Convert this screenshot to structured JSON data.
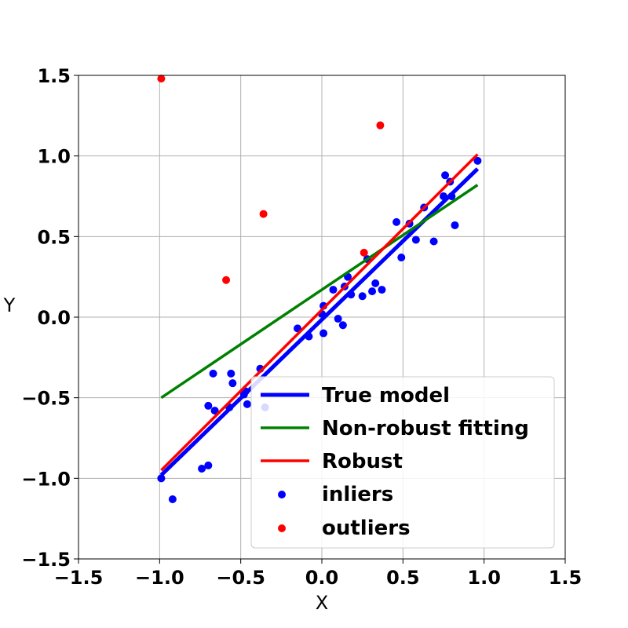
{
  "chart_data": {
    "type": "scatter",
    "title": "",
    "xlabel": "X",
    "ylabel": "Y",
    "xlim": [
      -1.5,
      1.5
    ],
    "ylim": [
      -1.5,
      1.5
    ],
    "xticks": [
      -1.5,
      -1.0,
      -0.5,
      0.0,
      0.5,
      1.0,
      1.5
    ],
    "yticks": [
      -1.5,
      -1.0,
      -0.5,
      0.0,
      0.5,
      1.0,
      1.5
    ],
    "xtick_labels": [
      "−1.5",
      "−1.0",
      "−0.5",
      "0.0",
      "0.5",
      "1.0",
      "1.5"
    ],
    "ytick_labels": [
      "−1.5",
      "−1.0",
      "−0.5",
      "0.0",
      "0.5",
      "1.0",
      "1.5"
    ],
    "grid": true,
    "legend_position": "lower-right",
    "lines": [
      {
        "name": "True model",
        "color": "#0000ff",
        "width": "thick",
        "x": [
          -0.99,
          0.96
        ],
        "y": [
          -0.98,
          0.92
        ]
      },
      {
        "name": "Non-robust fitting",
        "color": "#008000",
        "width": "normal",
        "x": [
          -0.99,
          0.96
        ],
        "y": [
          -0.5,
          0.82
        ]
      },
      {
        "name": "Robust",
        "color": "#ff0000",
        "width": "normal",
        "x": [
          -0.99,
          0.96
        ],
        "y": [
          -0.95,
          1.01
        ]
      }
    ],
    "scatter": [
      {
        "name": "inliers",
        "color": "#0000ff",
        "points": [
          [
            -0.99,
            -1.0
          ],
          [
            -0.92,
            -1.13
          ],
          [
            -0.74,
            -0.94
          ],
          [
            -0.7,
            -0.92
          ],
          [
            -0.7,
            -0.55
          ],
          [
            -0.67,
            -0.35
          ],
          [
            -0.66,
            -0.58
          ],
          [
            -0.57,
            -0.56
          ],
          [
            -0.56,
            -0.35
          ],
          [
            -0.55,
            -0.41
          ],
          [
            -0.48,
            -0.48
          ],
          [
            -0.47,
            -0.46
          ],
          [
            -0.46,
            -0.54
          ],
          [
            -0.38,
            -0.32
          ],
          [
            -0.35,
            -0.56
          ],
          [
            -0.15,
            -0.07
          ],
          [
            -0.08,
            -0.12
          ],
          [
            0.0,
            0.02
          ],
          [
            0.01,
            0.07
          ],
          [
            0.01,
            -0.1
          ],
          [
            0.07,
            0.17
          ],
          [
            0.1,
            -0.01
          ],
          [
            0.13,
            -0.05
          ],
          [
            0.14,
            0.19
          ],
          [
            0.16,
            0.25
          ],
          [
            0.18,
            0.14
          ],
          [
            0.25,
            0.13
          ],
          [
            0.28,
            0.36
          ],
          [
            0.31,
            0.16
          ],
          [
            0.33,
            0.21
          ],
          [
            0.37,
            0.17
          ],
          [
            0.46,
            0.59
          ],
          [
            0.49,
            0.37
          ],
          [
            0.54,
            0.58
          ],
          [
            0.58,
            0.48
          ],
          [
            0.63,
            0.68
          ],
          [
            0.69,
            0.47
          ],
          [
            0.75,
            0.75
          ],
          [
            0.76,
            0.88
          ],
          [
            0.79,
            0.84
          ],
          [
            0.8,
            0.75
          ],
          [
            0.82,
            0.57
          ],
          [
            0.96,
            0.97
          ]
        ]
      },
      {
        "name": "outliers",
        "color": "#ff0000",
        "points": [
          [
            -0.99,
            1.48
          ],
          [
            0.36,
            1.19
          ],
          [
            -0.36,
            0.64
          ],
          [
            -0.59,
            0.23
          ],
          [
            0.26,
            0.4
          ]
        ]
      }
    ]
  }
}
